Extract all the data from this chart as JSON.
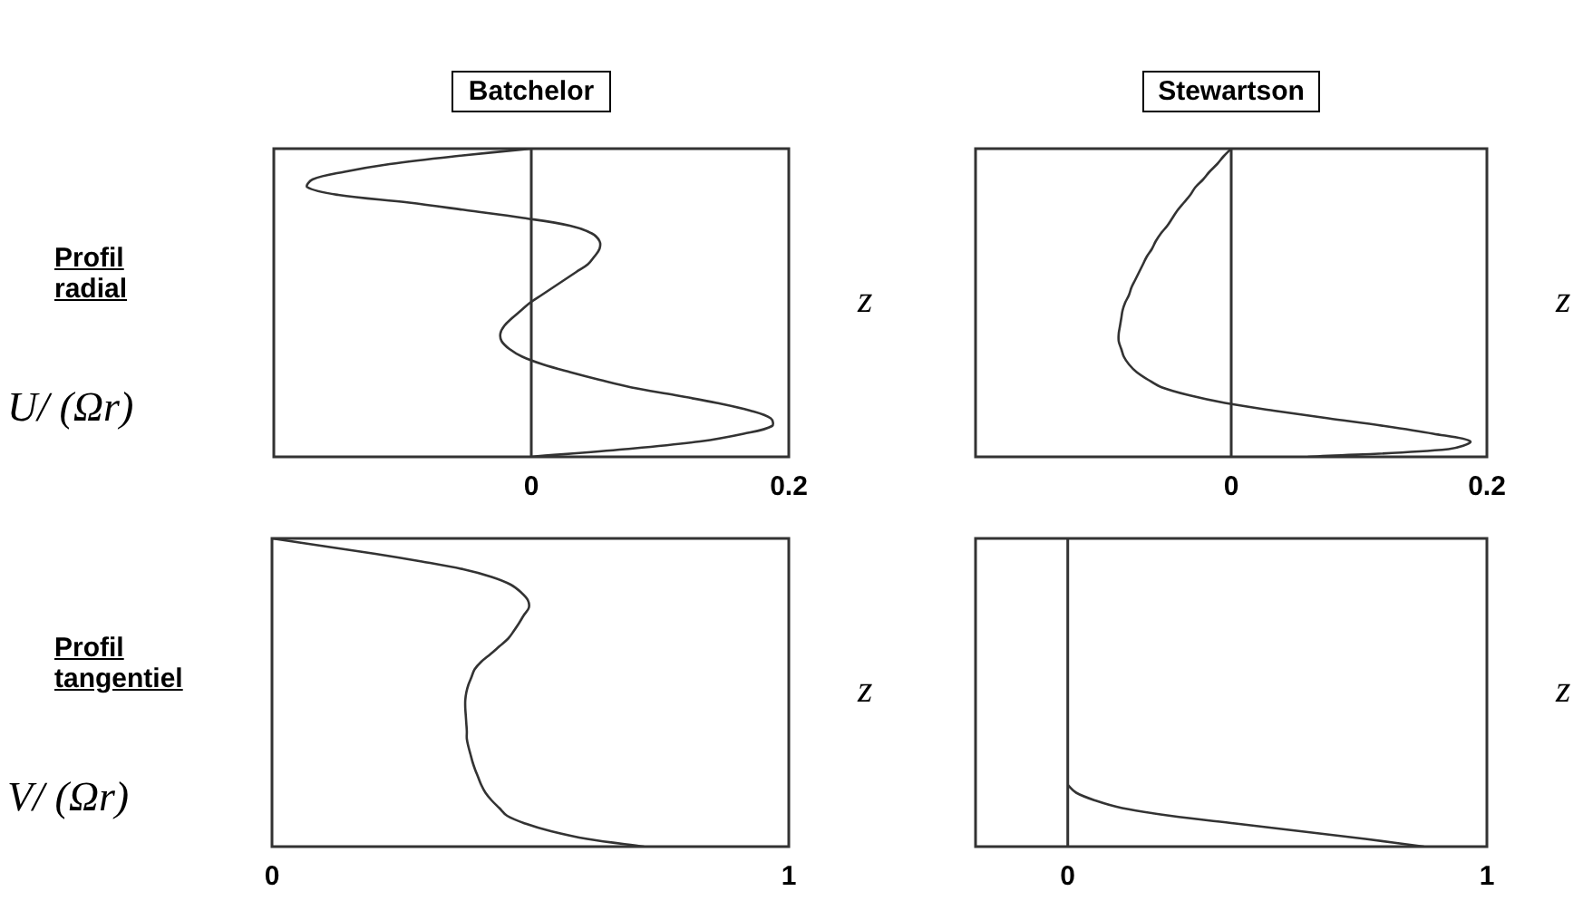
{
  "chart_data": [
    {
      "type": "line",
      "orientation": "horizontal",
      "title": "Batchelor",
      "ylabel": "z",
      "annotations": [
        "Profil radial",
        "U/ (Ωr)"
      ],
      "marker": "none",
      "color": "#333333",
      "xlim": [
        -0.2,
        0.2
      ],
      "xticks": [
        0,
        0.2
      ],
      "ref_lines": [
        {
          "axis": "x",
          "value": 0
        }
      ],
      "categories": [
        null,
        null,
        null,
        null,
        null,
        null,
        null,
        null,
        null,
        null,
        null,
        null,
        null,
        null,
        null,
        null,
        null,
        null,
        null,
        null,
        null,
        null,
        null,
        null,
        null,
        null,
        null,
        null,
        null,
        null,
        null,
        null,
        null,
        null,
        null,
        null,
        null,
        null,
        null,
        null,
        null
      ],
      "values": [
        0,
        -0.06,
        -0.11,
        -0.145,
        -0.17,
        -0.174,
        -0.15,
        -0.095,
        -0.05,
        -0.006,
        0.03,
        0.047,
        0.053,
        0.053,
        0.049,
        0.044,
        0.035,
        0.026,
        0.017,
        0.008,
        -0.001,
        -0.008,
        -0.015,
        -0.021,
        -0.024,
        -0.023,
        -0.017,
        -0.007,
        0.009,
        0.03,
        0.053,
        0.078,
        0.112,
        0.144,
        0.17,
        0.186,
        0.187,
        0.165,
        0.131,
        0.073,
        0
      ]
    },
    {
      "type": "line",
      "orientation": "horizontal",
      "title": "Stewartson",
      "ylabel": "z",
      "marker": "none",
      "color": "#333333",
      "xlim": [
        -0.2,
        0.2
      ],
      "xticks": [
        0,
        0.2
      ],
      "ref_lines": [
        {
          "axis": "x",
          "value": 0
        }
      ],
      "categories": [
        null,
        null,
        null,
        null,
        null,
        null,
        null,
        null,
        null,
        null,
        null,
        null,
        null,
        null,
        null,
        null,
        null,
        null,
        null,
        null,
        null,
        null,
        null,
        null,
        null,
        null,
        null,
        null,
        null,
        null,
        null,
        null,
        null,
        null,
        null,
        null,
        null,
        null,
        null,
        null,
        null
      ],
      "values": [
        0,
        -0.006,
        -0.011,
        -0.017,
        -0.022,
        -0.028,
        -0.032,
        -0.037,
        -0.042,
        -0.046,
        -0.05,
        -0.055,
        -0.059,
        -0.062,
        -0.066,
        -0.069,
        -0.072,
        -0.075,
        -0.078,
        -0.08,
        -0.083,
        -0.085,
        -0.086,
        -0.087,
        -0.088,
        -0.088,
        -0.086,
        -0.084,
        -0.08,
        -0.074,
        -0.065,
        -0.054,
        -0.033,
        -0.005,
        0.033,
        0.076,
        0.12,
        0.158,
        0.187,
        0.17,
        0.06
      ]
    },
    {
      "type": "line",
      "orientation": "horizontal",
      "ylabel": "z",
      "annotations": [
        "Profil tangentiel",
        "V/ (Ωr)"
      ],
      "marker": "none",
      "color": "#333333",
      "xlim": [
        0,
        1
      ],
      "xticks": [
        0,
        1
      ],
      "categories": [
        null,
        null,
        null,
        null,
        null,
        null,
        null,
        null,
        null,
        null,
        null,
        null,
        null,
        null,
        null,
        null,
        null,
        null,
        null,
        null,
        null,
        null,
        null,
        null,
        null,
        null,
        null,
        null,
        null,
        null,
        null,
        null,
        null,
        null,
        null,
        null,
        null,
        null,
        null,
        null,
        null
      ],
      "values": [
        0,
        0.1,
        0.2,
        0.29,
        0.37,
        0.425,
        0.462,
        0.482,
        0.495,
        0.497,
        0.487,
        0.478,
        0.468,
        0.457,
        0.44,
        0.423,
        0.405,
        0.392,
        0.386,
        0.38,
        0.376,
        0.374,
        0.374,
        0.375,
        0.376,
        0.377,
        0.377,
        0.38,
        0.384,
        0.388,
        0.393,
        0.399,
        0.405,
        0.413,
        0.425,
        0.44,
        0.455,
        0.49,
        0.54,
        0.61,
        0.72
      ]
    },
    {
      "type": "line",
      "orientation": "horizontal",
      "ylabel": "z",
      "marker": "none",
      "color": "#333333",
      "xlim": [
        -0.22,
        1
      ],
      "xticks": [
        0,
        1
      ],
      "ref_lines": [
        {
          "axis": "x",
          "value": 0
        }
      ],
      "categories": [
        null,
        null,
        null,
        null,
        null,
        null,
        null,
        null,
        null,
        null,
        null,
        null,
        null,
        null,
        null,
        null,
        null,
        null,
        null,
        null,
        null,
        null,
        null,
        null,
        null,
        null,
        null,
        null,
        null,
        null,
        null,
        null,
        null,
        null,
        null,
        null,
        null,
        null,
        null,
        null,
        null
      ],
      "values": [
        null,
        null,
        null,
        null,
        null,
        null,
        null,
        null,
        null,
        null,
        null,
        null,
        null,
        null,
        null,
        null,
        null,
        null,
        null,
        null,
        null,
        null,
        null,
        null,
        null,
        null,
        null,
        null,
        null,
        null,
        null,
        null,
        0,
        0.02,
        0.065,
        0.13,
        0.245,
        0.4,
        0.555,
        0.71,
        0.85
      ]
    }
  ]
}
